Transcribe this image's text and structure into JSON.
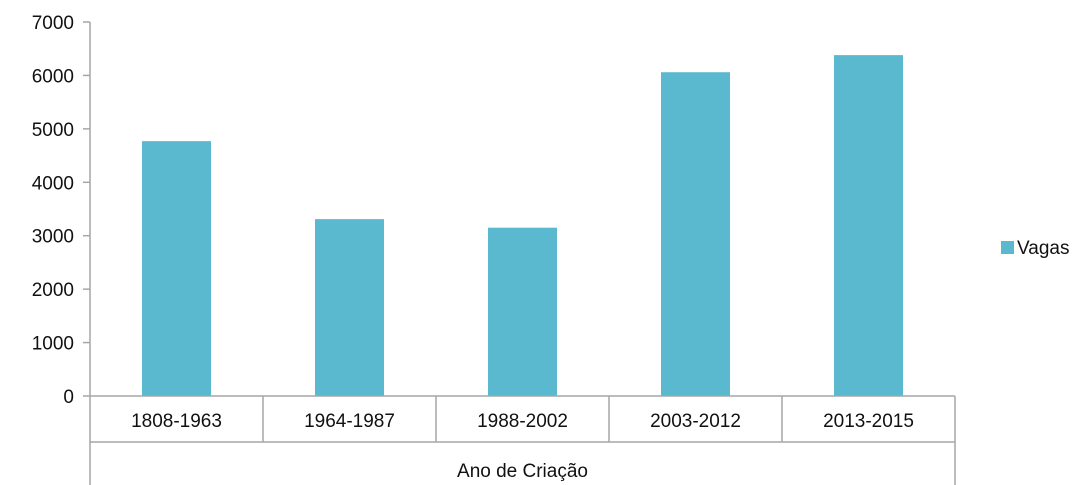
{
  "chart_data": {
    "type": "bar",
    "categories": [
      "1808-1963",
      "1964-1987",
      "1988-2002",
      "2003-2012",
      "2013-2015"
    ],
    "series": [
      {
        "name": "Vagas",
        "values": [
          4770,
          3310,
          3150,
          6060,
          6380
        ],
        "color": "#5ab8cf"
      }
    ],
    "xlabel": "Ano de Criação",
    "ylabel": "",
    "ylim": [
      0,
      7000
    ],
    "yticks": [
      0,
      1000,
      2000,
      3000,
      4000,
      5000,
      6000,
      7000
    ],
    "grid": false,
    "legend_position": "right",
    "axis_color": "#a6a6a6"
  }
}
